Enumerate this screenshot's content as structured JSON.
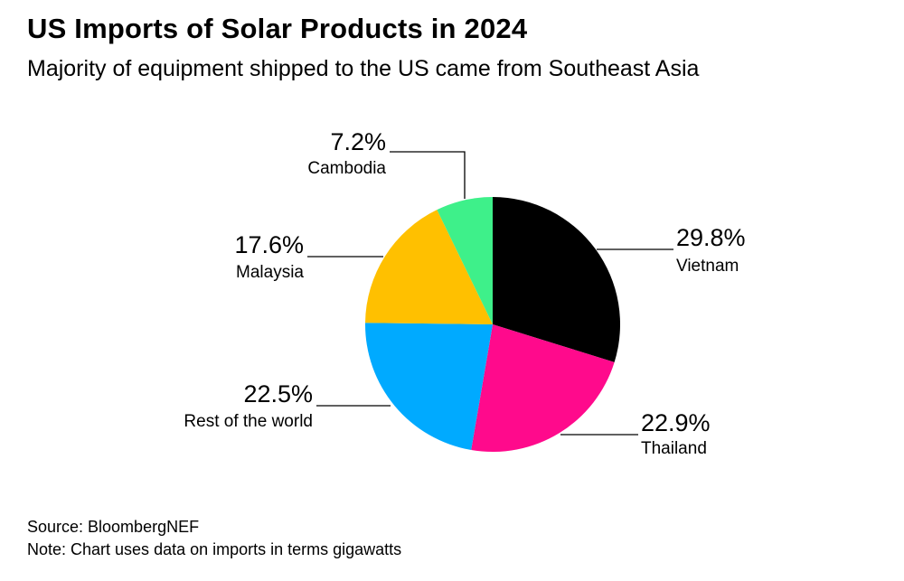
{
  "header": {
    "title": "US Imports of Solar Products in 2024",
    "subtitle": "Majority of equipment shipped to the US came from Southeast Asia"
  },
  "chart_data": {
    "type": "pie",
    "title": "US Imports of Solar Products in 2024",
    "subtitle": "Majority of equipment shipped to the US came from Southeast Asia",
    "legend": "none (direct labels)",
    "slices": [
      {
        "name": "Vietnam",
        "value": 29.8,
        "label": "29.8%",
        "color": "#000000"
      },
      {
        "name": "Thailand",
        "value": 22.9,
        "label": "22.9%",
        "color": "#ff0a8c"
      },
      {
        "name": "Rest of the world",
        "value": 22.5,
        "label": "22.5%",
        "color": "#00aaff"
      },
      {
        "name": "Malaysia",
        "value": 17.6,
        "label": "17.6%",
        "color": "#ffc000"
      },
      {
        "name": "Cambodia",
        "value": 7.2,
        "label": "7.2%",
        "color": "#3ef08a"
      }
    ]
  },
  "footer": {
    "source": "Source: BloombergNEF",
    "note": "Note: Chart uses data on imports in terms gigawatts"
  }
}
